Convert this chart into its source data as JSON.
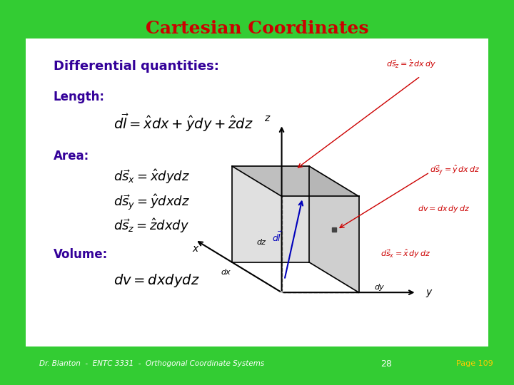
{
  "title": "Cartesian Coordinates",
  "title_bg": "#33cc33",
  "title_color": "#cc0000",
  "main_bg": "#ffffff",
  "outer_bg": "#33cc33",
  "header_text": "Differential quantities:",
  "header_color": "#330099",
  "label_length": "Length:",
  "label_area": "Area:",
  "label_volume": "Volume:",
  "label_color": "#330099",
  "footer_left": "Dr. Blanton  -  ENTC 3331  -  Orthogonal Coordinate Systems",
  "footer_num": "28",
  "footer_page": "Page 109",
  "footer_left_color": "#ffffff",
  "footer_num_color": "#ffffff",
  "footer_page_color": "#ffcc00",
  "footer_bg": "#33cc33"
}
